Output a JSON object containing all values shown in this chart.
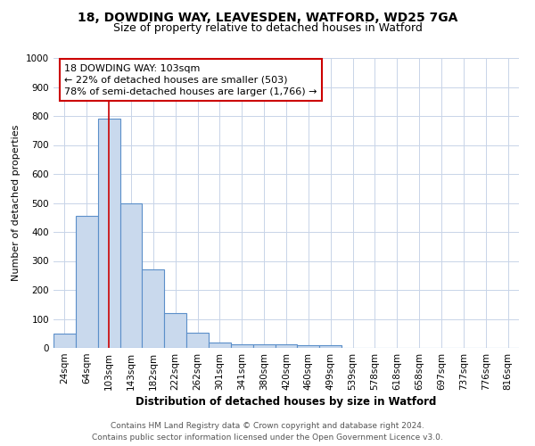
{
  "title_line1": "18, DOWDING WAY, LEAVESDEN, WATFORD, WD25 7GA",
  "title_line2": "Size of property relative to detached houses in Watford",
  "xlabel": "Distribution of detached houses by size in Watford",
  "ylabel": "Number of detached properties",
  "categories": [
    "24sqm",
    "64sqm",
    "103sqm",
    "143sqm",
    "182sqm",
    "222sqm",
    "262sqm",
    "301sqm",
    "341sqm",
    "380sqm",
    "420sqm",
    "460sqm",
    "499sqm",
    "539sqm",
    "578sqm",
    "618sqm",
    "658sqm",
    "697sqm",
    "737sqm",
    "776sqm",
    "816sqm"
  ],
  "values": [
    48,
    455,
    790,
    500,
    270,
    120,
    52,
    20,
    12,
    12,
    12,
    9,
    9,
    0,
    0,
    0,
    0,
    0,
    0,
    0,
    0
  ],
  "bar_color": "#c9d9ed",
  "bar_edge_color": "#5b8fc9",
  "red_line_index": 2,
  "red_line_color": "#cc0000",
  "annotation_text": "18 DOWDING WAY: 103sqm\n← 22% of detached houses are smaller (503)\n78% of semi-detached houses are larger (1,766) →",
  "annotation_box_color": "#cc0000",
  "annotation_text_color": "#000000",
  "ylim": [
    0,
    1000
  ],
  "yticks": [
    0,
    100,
    200,
    300,
    400,
    500,
    600,
    700,
    800,
    900,
    1000
  ],
  "footnote": "Contains HM Land Registry data © Crown copyright and database right 2024.\nContains public sector information licensed under the Open Government Licence v3.0.",
  "background_color": "#ffffff",
  "grid_color": "#c8d4e8",
  "title_fontsize": 10,
  "subtitle_fontsize": 9,
  "axis_label_fontsize": 8.5,
  "tick_fontsize": 7.5,
  "annotation_fontsize": 8,
  "footnote_fontsize": 6.5
}
